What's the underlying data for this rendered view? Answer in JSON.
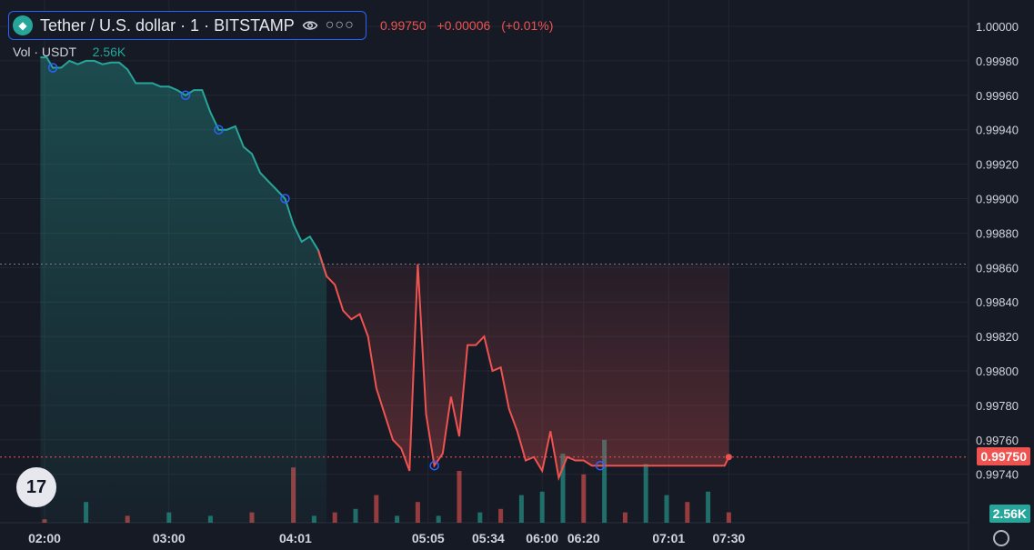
{
  "header": {
    "symbol": "Tether / U.S. dollar · 1 · BITSTAMP",
    "last_price": "0.99750",
    "change": "+0.00006",
    "change_pct": "(+0.01%)",
    "volume_label": "Vol · USDT",
    "volume_value": "2.56K"
  },
  "price_badge": "0.99750",
  "volume_badge": "2.56K",
  "icons": {
    "logo": "tether-logo-icon",
    "eye": "eye-icon",
    "more": "more-icon",
    "tv": "tradingview-logo-icon",
    "settings": "gear-icon"
  },
  "colors": {
    "up": "#26a69a",
    "down": "#ef5350",
    "background": "#161a25",
    "grid": "#232632",
    "axis_text": "#d1d4dc"
  },
  "chart_data": {
    "type": "area",
    "title": "Tether / U.S. dollar · 1 · BITSTAMP",
    "xlabel": "",
    "ylabel": "",
    "ylim": [
      0.9972,
      1.0001
    ],
    "y_ticks": [
      "1.00000",
      "0.99980",
      "0.99960",
      "0.99940",
      "0.99920",
      "0.99900",
      "0.99880",
      "0.99860",
      "0.99840",
      "0.99820",
      "0.99800",
      "0.99780",
      "0.99760",
      "0.99740"
    ],
    "x_ticks": [
      {
        "label": "02:00",
        "minute": 0
      },
      {
        "label": "03:00",
        "minute": 60
      },
      {
        "label": "04:01",
        "minute": 121
      },
      {
        "label": "05:05",
        "minute": 185
      },
      {
        "label": "05:34",
        "minute": 214
      },
      {
        "label": "06:00",
        "minute": 240
      },
      {
        "label": "06:20",
        "minute": 260
      },
      {
        "label": "07:01",
        "minute": 301
      },
      {
        "label": "07:30",
        "minute": 330
      }
    ],
    "baseline": 0.99862,
    "last": 0.9975,
    "grid": true,
    "legend": "top-left",
    "series": [
      {
        "minute": [
          -2,
          1,
          4,
          8,
          12,
          16,
          20,
          24,
          28,
          32,
          36,
          40,
          44,
          48,
          52,
          56,
          60,
          64,
          68,
          72,
          76,
          80,
          84,
          88,
          92,
          96,
          100,
          104,
          108,
          112,
          116,
          120,
          124,
          128,
          132,
          136,
          140,
          144,
          148,
          152,
          156,
          160,
          164,
          168,
          172,
          176,
          180,
          184,
          188,
          192,
          196,
          200,
          204,
          208,
          212,
          216,
          220,
          224,
          228,
          232,
          236,
          240,
          244,
          248,
          252,
          256,
          260,
          264,
          268,
          272,
          276,
          280,
          284,
          288,
          292,
          296,
          300,
          304,
          308,
          312,
          316,
          320,
          324,
          328,
          330
        ],
        "values": [
          0.99982,
          0.99982,
          0.99976,
          0.99976,
          0.9998,
          0.99978,
          0.9998,
          0.9998,
          0.99978,
          0.99979,
          0.99979,
          0.99975,
          0.99967,
          0.99967,
          0.99967,
          0.99965,
          0.99965,
          0.99963,
          0.9996,
          0.99963,
          0.99963,
          0.9995,
          0.9994,
          0.9994,
          0.99942,
          0.9993,
          0.99926,
          0.99915,
          0.9991,
          0.99905,
          0.999,
          0.99885,
          0.99875,
          0.99878,
          0.9987,
          0.99855,
          0.9985,
          0.99835,
          0.9983,
          0.99833,
          0.9982,
          0.9979,
          0.99775,
          0.9976,
          0.99755,
          0.99742,
          0.99862,
          0.99775,
          0.99745,
          0.99752,
          0.99785,
          0.99762,
          0.99815,
          0.99815,
          0.9982,
          0.998,
          0.99802,
          0.99778,
          0.99765,
          0.99748,
          0.9975,
          0.99742,
          0.99765,
          0.99738,
          0.9975,
          0.99748,
          0.99748,
          0.99745,
          0.99745,
          0.99745,
          0.99745,
          0.99745,
          0.99745,
          0.99745,
          0.99745,
          0.99745,
          0.99745,
          0.99745,
          0.99745,
          0.99745,
          0.99745,
          0.99745,
          0.99745,
          0.99745,
          0.9975
        ]
      }
    ],
    "volume": {
      "minute": [
        0,
        20,
        40,
        60,
        80,
        100,
        120,
        130,
        140,
        150,
        160,
        170,
        180,
        190,
        200,
        210,
        220,
        230,
        240,
        250,
        260,
        270,
        280,
        290,
        300,
        310,
        320,
        330
      ],
      "values": [
        0.1,
        0.6,
        0.2,
        0.3,
        0.2,
        0.3,
        1.6,
        0.2,
        0.3,
        0.4,
        0.8,
        0.2,
        0.6,
        0.2,
        1.5,
        0.3,
        0.4,
        0.8,
        0.9,
        2.0,
        1.4,
        2.4,
        0.3,
        1.7,
        0.8,
        0.6,
        0.9,
        0.3
      ],
      "up": [
        false,
        true,
        false,
        true,
        true,
        false,
        false,
        true,
        false,
        true,
        false,
        true,
        false,
        true,
        false,
        true,
        false,
        true,
        true,
        true,
        false,
        true,
        false,
        true,
        true,
        false,
        true,
        false
      ]
    }
  }
}
